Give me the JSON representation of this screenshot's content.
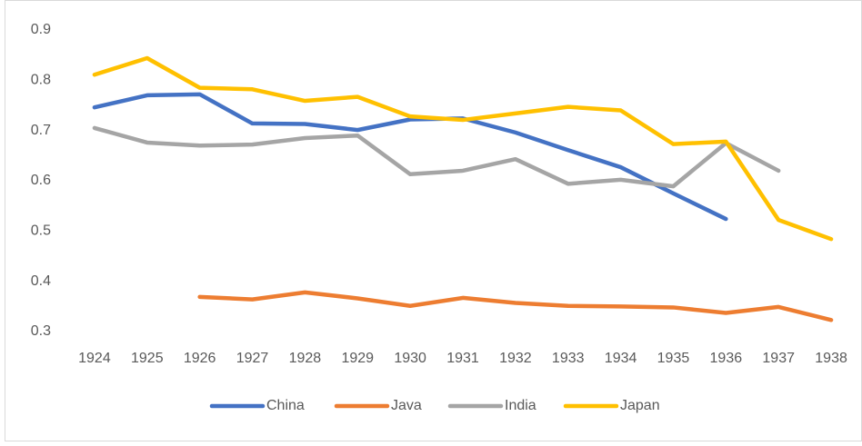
{
  "chart_data": {
    "type": "line",
    "categories": [
      "1924",
      "1925",
      "1926",
      "1927",
      "1928",
      "1929",
      "1930",
      "1931",
      "1932",
      "1933",
      "1934",
      "1935",
      "1936",
      "1937",
      "1938"
    ],
    "series": [
      {
        "name": "China",
        "color": "#4472c4",
        "values": [
          0.746,
          0.77,
          0.772,
          0.714,
          0.713,
          0.701,
          0.722,
          0.724,
          0.696,
          0.661,
          0.627,
          0.575,
          0.524,
          null,
          null
        ]
      },
      {
        "name": "Java",
        "color": "#ed7d31",
        "values": [
          null,
          null,
          0.369,
          0.364,
          0.378,
          0.366,
          0.351,
          0.367,
          0.357,
          0.351,
          0.35,
          0.348,
          0.337,
          0.349,
          0.323
        ]
      },
      {
        "name": "India",
        "color": "#a5a5a5",
        "values": [
          0.705,
          0.676,
          0.67,
          0.672,
          0.685,
          0.69,
          0.613,
          0.62,
          0.643,
          0.594,
          0.602,
          0.589,
          0.675,
          0.62,
          null
        ]
      },
      {
        "name": "Japan",
        "color": "#ffc000",
        "values": [
          0.811,
          0.844,
          0.785,
          0.782,
          0.759,
          0.767,
          0.728,
          0.721,
          0.734,
          0.747,
          0.74,
          0.673,
          0.678,
          0.522,
          0.484
        ]
      }
    ],
    "ylim": [
      0.3,
      0.9
    ],
    "yticks": [
      0.3,
      0.4,
      0.5,
      0.6,
      0.7,
      0.8,
      0.9
    ],
    "grid": false
  }
}
